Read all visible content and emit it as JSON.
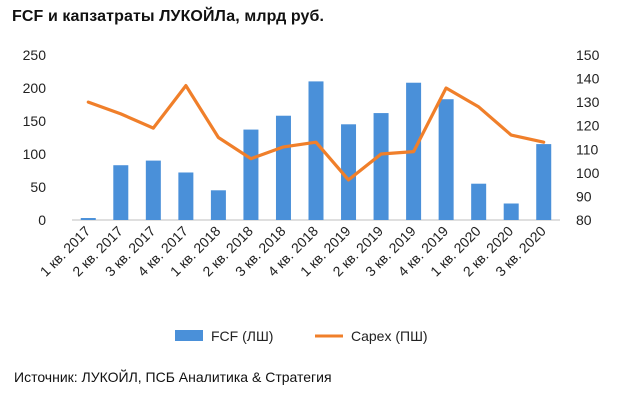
{
  "title": "FCF и капзатраты ЛУКОЙЛа, млрд руб.",
  "source": "Источник: ЛУКОЙЛ, ПСБ Аналитика & Стратегия",
  "colors": {
    "bar": "#4A90D9",
    "line": "#F07F2A"
  },
  "chart_data": {
    "type": "bar+line",
    "title": "FCF и капзатраты ЛУКОЙЛа, млрд руб.",
    "categories": [
      "1 кв. 2017",
      "2 кв. 2017",
      "3 кв. 2017",
      "4 кв. 2017",
      "1 кв. 2018",
      "2 кв. 2018",
      "3 кв. 2018",
      "4 кв. 2018",
      "1 кв. 2019",
      "2 кв. 2019",
      "3 кв. 2019",
      "4 кв. 2019",
      "1 кв. 2020",
      "2 кв. 2020",
      "3 кв. 2020"
    ],
    "left_axis": {
      "min": 0,
      "max": 250,
      "ticks": [
        "0",
        "50",
        "100",
        "150",
        "200",
        "250"
      ]
    },
    "right_axis": {
      "min": 80,
      "max": 150,
      "ticks": [
        "80",
        "90",
        "100",
        "110",
        "120",
        "130",
        "140",
        "150"
      ]
    },
    "series": [
      {
        "name": "FCF (ЛШ)",
        "type": "bar",
        "axis": "left",
        "values": [
          3,
          83,
          90,
          72,
          45,
          137,
          158,
          210,
          145,
          162,
          208,
          183,
          55,
          25,
          115
        ]
      },
      {
        "name": "Capex (ПШ)",
        "type": "line",
        "axis": "right",
        "values": [
          130,
          125,
          119,
          137,
          115,
          106,
          111,
          113,
          97,
          108,
          109,
          136,
          128,
          116,
          113
        ]
      }
    ],
    "legend": {
      "position": "bottom"
    }
  }
}
